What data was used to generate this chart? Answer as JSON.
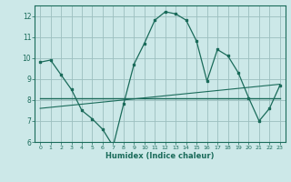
{
  "xlabel": "Humidex (Indice chaleur)",
  "bg_color": "#cce8e8",
  "grid_color": "#9bbfbf",
  "line_color": "#1a6b5a",
  "x_values": [
    0,
    1,
    2,
    3,
    4,
    5,
    6,
    7,
    8,
    9,
    10,
    11,
    12,
    13,
    14,
    15,
    16,
    17,
    18,
    19,
    20,
    21,
    22,
    23
  ],
  "y_main": [
    9.8,
    9.9,
    9.2,
    8.5,
    7.5,
    7.1,
    6.6,
    5.8,
    7.8,
    9.7,
    10.7,
    11.8,
    12.2,
    12.1,
    11.8,
    10.8,
    8.9,
    10.4,
    10.1,
    9.3,
    8.1,
    7.0,
    7.6,
    8.7
  ],
  "y_mean": [
    8.1,
    8.1,
    8.1,
    8.1,
    8.1,
    8.1,
    8.1,
    8.1,
    8.1,
    8.1,
    8.1,
    8.1,
    8.1,
    8.1,
    8.1,
    8.1,
    8.1,
    8.1,
    8.1,
    8.1,
    8.1,
    8.1,
    8.1,
    8.1
  ],
  "y_trend": [
    7.6,
    7.65,
    7.7,
    7.75,
    7.8,
    7.85,
    7.9,
    7.95,
    8.0,
    8.05,
    8.1,
    8.15,
    8.2,
    8.25,
    8.3,
    8.35,
    8.4,
    8.45,
    8.5,
    8.55,
    8.6,
    8.65,
    8.7,
    8.75
  ],
  "ylim": [
    6,
    12.5
  ],
  "xlim": [
    -0.5,
    23.5
  ],
  "yticks": [
    6,
    7,
    8,
    9,
    10,
    11,
    12
  ],
  "xticks": [
    0,
    1,
    2,
    3,
    4,
    5,
    6,
    7,
    8,
    9,
    10,
    11,
    12,
    13,
    14,
    15,
    16,
    17,
    18,
    19,
    20,
    21,
    22,
    23
  ]
}
